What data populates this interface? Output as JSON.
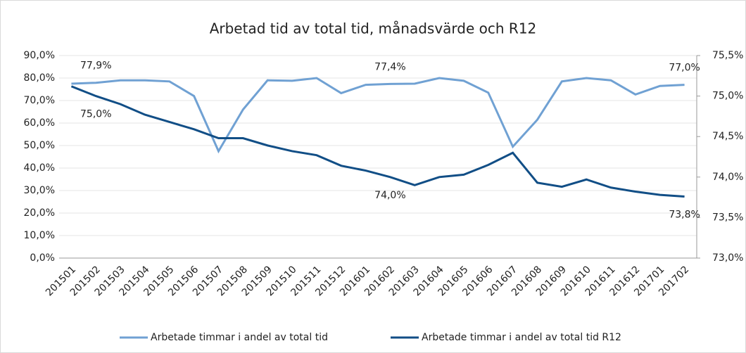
{
  "chart_data": {
    "type": "line",
    "title": "Arbetad tid av total tid, månadsvärde och R12",
    "categories": [
      "201501",
      "201502",
      "201503",
      "201504",
      "201505",
      "201506",
      "201507",
      "201508",
      "201509",
      "201510",
      "201511",
      "201512",
      "201601",
      "201602",
      "201603",
      "201604",
      "201605",
      "201606",
      "201607",
      "201608",
      "201609",
      "201610",
      "201611",
      "201612",
      "201701",
      "201702"
    ],
    "series": [
      {
        "name": "Arbetade timmar i andel av total tid",
        "color": "#70a1d3",
        "axis": "y",
        "values": [
          77.5,
          77.9,
          79,
          79,
          78.5,
          72,
          47.5,
          66,
          79,
          78.8,
          80,
          73.3,
          77,
          77.4,
          77.5,
          80,
          78.8,
          73.5,
          49.5,
          61.5,
          78.5,
          80,
          79,
          72.7,
          76.5,
          77.0
        ],
        "value_labels": [
          null,
          "77,9%",
          null,
          null,
          null,
          null,
          null,
          null,
          null,
          null,
          null,
          null,
          null,
          "77,4%",
          null,
          null,
          null,
          null,
          null,
          null,
          null,
          null,
          null,
          null,
          null,
          "77,0%"
        ]
      },
      {
        "name": "Arbetade timmar i andel av total tid R12",
        "color": "#114e86",
        "axis": "y2",
        "values": [
          75.12,
          75.0,
          74.9,
          74.77,
          74.68,
          74.59,
          74.48,
          74.48,
          74.39,
          74.32,
          74.27,
          74.14,
          74.08,
          74.0,
          73.9,
          74.0,
          74.03,
          74.15,
          74.3,
          73.93,
          73.88,
          73.97,
          73.87,
          73.82,
          73.78,
          73.76
        ],
        "value_labels": [
          null,
          "75,0%",
          null,
          null,
          null,
          null,
          null,
          null,
          null,
          null,
          null,
          null,
          null,
          "74,0%",
          null,
          null,
          null,
          null,
          null,
          null,
          null,
          null,
          null,
          null,
          null,
          "73,8%"
        ]
      }
    ],
    "ylim": [
      0,
      90
    ],
    "yticks": [
      {
        "value": 0,
        "label": "0,0%"
      },
      {
        "value": 10,
        "label": "10,0%"
      },
      {
        "value": 20,
        "label": "20,0%"
      },
      {
        "value": 30,
        "label": "30,0%"
      },
      {
        "value": 40,
        "label": "40,0%"
      },
      {
        "value": 50,
        "label": "50,0%"
      },
      {
        "value": 60,
        "label": "60,0%"
      },
      {
        "value": 70,
        "label": "70,0%"
      },
      {
        "value": 80,
        "label": "80,0%"
      },
      {
        "value": 90,
        "label": "90,0%"
      }
    ],
    "y2lim": [
      73.0,
      75.5
    ],
    "y2ticks": [
      {
        "value": 73.0,
        "label": "73,0%"
      },
      {
        "value": 73.5,
        "label": "73,5%"
      },
      {
        "value": 74.0,
        "label": "74,0%"
      },
      {
        "value": 74.5,
        "label": "74,5%"
      },
      {
        "value": 75.0,
        "label": "75,0%"
      },
      {
        "value": 75.5,
        "label": "75,5%"
      }
    ],
    "grid": true,
    "legend": "bottom"
  }
}
